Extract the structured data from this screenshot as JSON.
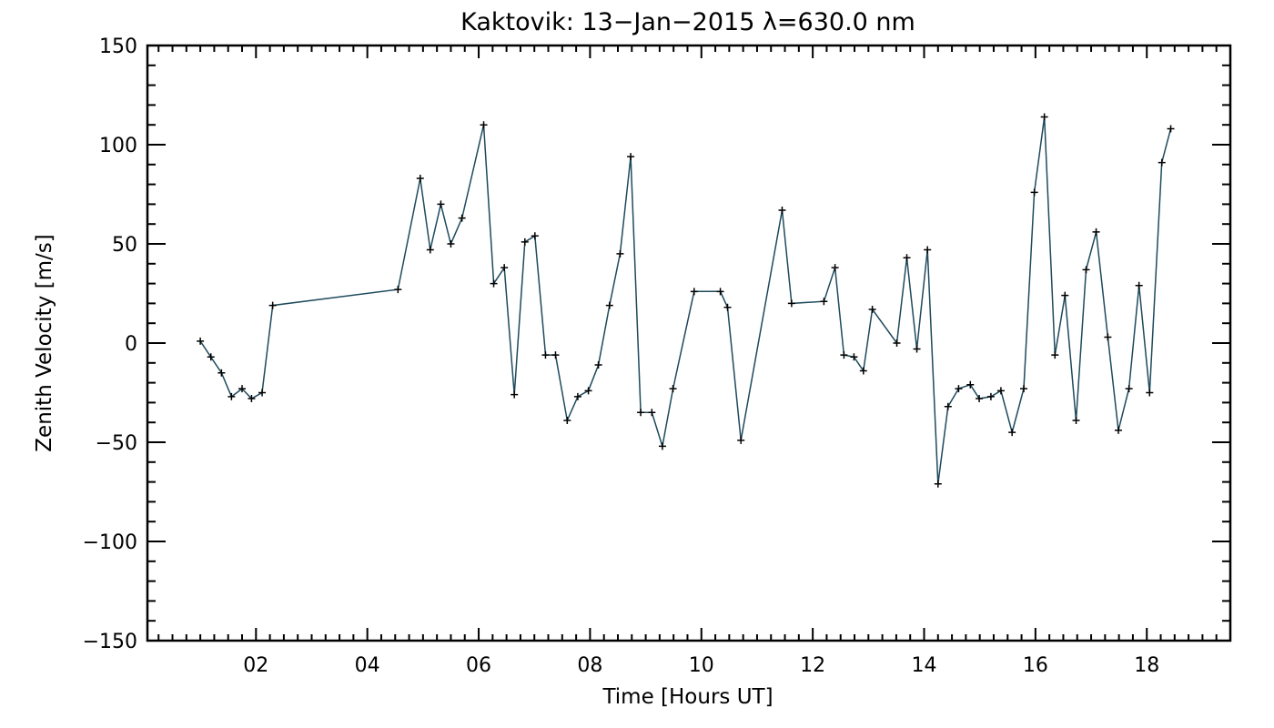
{
  "colors": {
    "line": "#1e4a5c",
    "marker": "#000000",
    "axis": "#000000",
    "background": "#ffffff"
  },
  "chart_data": {
    "type": "line",
    "title": "Kaktovik: 13−Jan−2015 λ=630.0 nm",
    "xlabel": "Time [Hours UT]",
    "ylabel": "Zenith Velocity [m/s]",
    "xlim": [
      0.05,
      19.5
    ],
    "ylim": [
      -150,
      150
    ],
    "grid": false,
    "legend": "none",
    "x_ticks": [
      {
        "value": 2,
        "label": "02"
      },
      {
        "value": 4,
        "label": "04"
      },
      {
        "value": 6,
        "label": "06"
      },
      {
        "value": 8,
        "label": "08"
      },
      {
        "value": 10,
        "label": "10"
      },
      {
        "value": 12,
        "label": "12"
      },
      {
        "value": 14,
        "label": "14"
      },
      {
        "value": 16,
        "label": "16"
      },
      {
        "value": 18,
        "label": "18"
      }
    ],
    "y_ticks": [
      {
        "value": 150,
        "label": "150"
      },
      {
        "value": 100,
        "label": "100"
      },
      {
        "value": 50,
        "label": "50"
      },
      {
        "value": 0,
        "label": "0"
      },
      {
        "value": -50,
        "label": "−50"
      },
      {
        "value": -100,
        "label": "−100"
      },
      {
        "value": -150,
        "label": "−150"
      }
    ],
    "marker": "plus",
    "series": [
      {
        "points": [
          [
            1.0,
            1
          ],
          [
            1.19,
            -7
          ],
          [
            1.38,
            -15
          ],
          [
            1.56,
            -27
          ],
          [
            1.75,
            -23
          ],
          [
            1.92,
            -28
          ],
          [
            2.11,
            -25
          ],
          [
            2.3,
            19
          ],
          [
            4.55,
            27
          ],
          [
            4.95,
            83
          ],
          [
            5.13,
            47
          ],
          [
            5.32,
            70
          ],
          [
            5.5,
            50
          ],
          [
            5.7,
            63
          ],
          [
            6.09,
            110
          ],
          [
            6.27,
            30
          ],
          [
            6.46,
            38
          ],
          [
            6.64,
            -26
          ],
          [
            6.83,
            51
          ],
          [
            7.01,
            54
          ],
          [
            7.2,
            -6
          ],
          [
            7.38,
            -6
          ],
          [
            7.59,
            -39
          ],
          [
            7.78,
            -27
          ],
          [
            7.97,
            -24
          ],
          [
            8.15,
            -11
          ],
          [
            8.35,
            19
          ],
          [
            8.54,
            45
          ],
          [
            8.73,
            94
          ],
          [
            8.91,
            -35
          ],
          [
            9.11,
            -35
          ],
          [
            9.3,
            -52
          ],
          [
            9.49,
            -23
          ],
          [
            9.87,
            26
          ],
          [
            10.34,
            26
          ],
          [
            10.47,
            18
          ],
          [
            10.71,
            -49
          ],
          [
            11.45,
            67
          ],
          [
            11.62,
            20
          ],
          [
            12.2,
            21
          ],
          [
            12.4,
            38
          ],
          [
            12.56,
            -6
          ],
          [
            12.74,
            -7
          ],
          [
            12.91,
            -14
          ],
          [
            13.07,
            17
          ],
          [
            13.51,
            0
          ],
          [
            13.69,
            43
          ],
          [
            13.87,
            -3
          ],
          [
            14.06,
            47
          ],
          [
            14.25,
            -71
          ],
          [
            14.43,
            -32
          ],
          [
            14.62,
            -23
          ],
          [
            14.83,
            -21
          ],
          [
            14.99,
            -28
          ],
          [
            15.2,
            -27
          ],
          [
            15.38,
            -24
          ],
          [
            15.58,
            -45
          ],
          [
            15.79,
            -23
          ],
          [
            15.98,
            76
          ],
          [
            16.16,
            114
          ],
          [
            16.35,
            -6
          ],
          [
            16.53,
            24
          ],
          [
            16.73,
            -39
          ],
          [
            16.91,
            37
          ],
          [
            17.09,
            56
          ],
          [
            17.3,
            3
          ],
          [
            17.49,
            -44
          ],
          [
            17.68,
            -23
          ],
          [
            17.86,
            29
          ],
          [
            18.05,
            -25
          ],
          [
            18.27,
            91
          ],
          [
            18.43,
            108
          ]
        ]
      }
    ]
  }
}
